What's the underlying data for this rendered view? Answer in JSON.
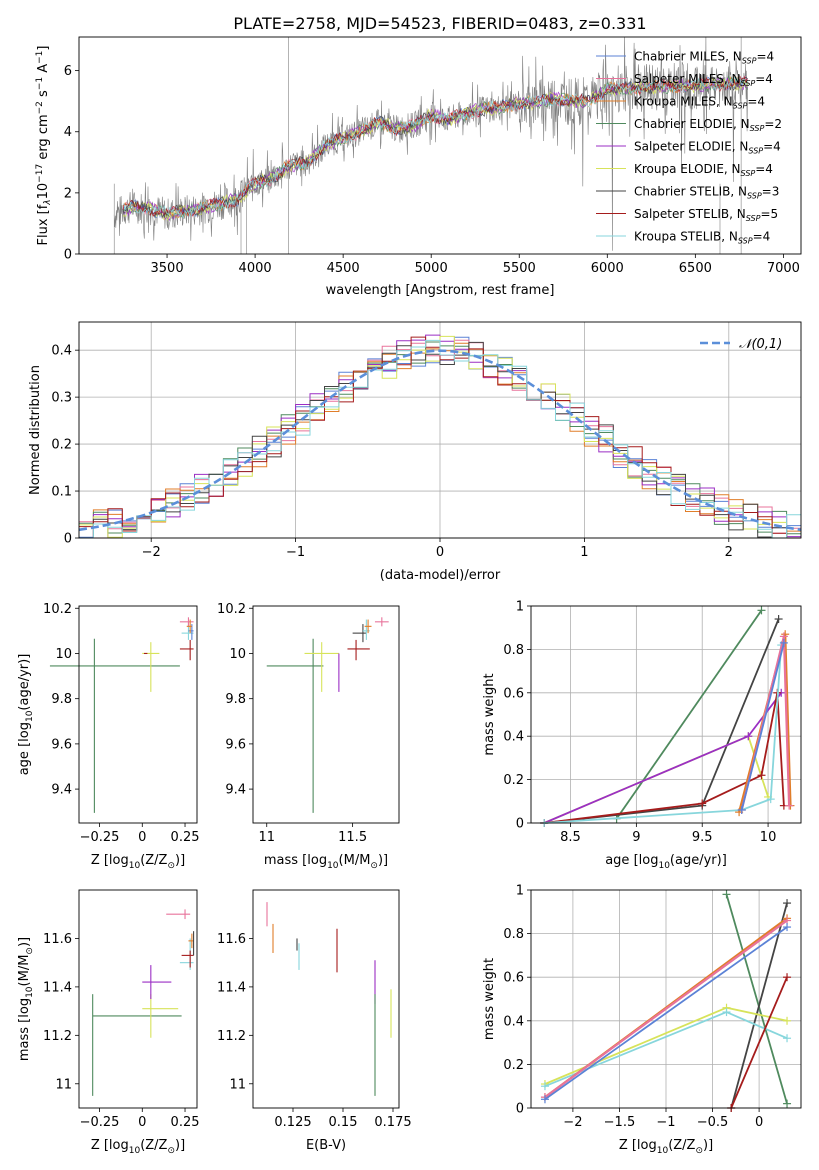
{
  "title": "PLATE=2758, MJD=54523, FIBERID=0483, z=0.331",
  "series_colors": {
    "chabrier_miles": "#5b82d6",
    "salpeter_miles": "#e8739b",
    "kroupa_miles": "#e07e2a",
    "chabrier_elodie": "#4f8a5e",
    "salpeter_elodie": "#9b2fc4",
    "kroupa_elodie": "#d7e35a",
    "chabrier_stelib": "#444444",
    "salpeter_stelib": "#a51c1c",
    "kroupa_stelib": "#87d6dc"
  },
  "chart_data": [
    {
      "id": "spectrum",
      "type": "line",
      "title": "PLATE=2758, MJD=54523, FIBERID=0483, z=0.331",
      "xlabel": "wavelength [Angstrom, rest frame]",
      "ylabel_parts": [
        "Flux [f",
        "λ",
        "10",
        "−17",
        " erg cm",
        "−2",
        " s",
        "−1",
        " A",
        "−1",
        "]"
      ],
      "xlim": [
        3000,
        7100
      ],
      "ylim": [
        0,
        7.1
      ],
      "xticks": [
        3500,
        4000,
        4500,
        5000,
        5500,
        6000,
        6500,
        7000
      ],
      "yticks": [
        0,
        2,
        4,
        6
      ],
      "data_color": "#808080",
      "legend_position": "top-right",
      "legend": [
        {
          "key": "chabrier_miles",
          "label": "Chabrier MILES, N",
          "sub": "SSP",
          "val": "=4"
        },
        {
          "key": "salpeter_miles",
          "label": "Salpeter MILES, N",
          "sub": "SSP",
          "val": "=4"
        },
        {
          "key": "kroupa_miles",
          "label": "Kroupa MILES, N",
          "sub": "SSP",
          "val": "=4"
        },
        {
          "key": "chabrier_elodie",
          "label": "Chabrier ELODIE, N",
          "sub": "SSP",
          "val": "=2"
        },
        {
          "key": "salpeter_elodie",
          "label": "Salpeter ELODIE, N",
          "sub": "SSP",
          "val": "=4"
        },
        {
          "key": "kroupa_elodie",
          "label": "Kroupa ELODIE, N",
          "sub": "SSP",
          "val": "=4"
        },
        {
          "key": "chabrier_stelib",
          "label": "Chabrier STELIB, N",
          "sub": "SSP",
          "val": "=3"
        },
        {
          "key": "salpeter_stelib",
          "label": "Salpeter STELIB, N",
          "sub": "SSP",
          "val": "=5"
        },
        {
          "key": "kroupa_stelib",
          "label": "Kroupa STELIB, N",
          "sub": "SSP",
          "val": "=4"
        }
      ],
      "continuum_x": [
        3200,
        3300,
        3400,
        3500,
        3600,
        3700,
        3800,
        3900,
        4000,
        4100,
        4200,
        4300,
        4400,
        4500,
        4600,
        4700,
        4800,
        4900,
        5000,
        5100,
        5200,
        5300,
        5400,
        5500,
        5600,
        5700,
        5800,
        5900,
        6000,
        6200,
        6400,
        6600,
        6800
      ],
      "continuum_y": [
        1.3,
        1.55,
        1.5,
        1.3,
        1.4,
        1.5,
        1.65,
        1.8,
        2.3,
        2.5,
        2.9,
        3.0,
        3.55,
        3.8,
        4.0,
        4.3,
        4.1,
        4.2,
        4.55,
        4.4,
        4.6,
        4.75,
        4.8,
        4.95,
        4.95,
        5.1,
        5.0,
        5.0,
        5.4,
        5.45,
        5.5,
        5.55,
        5.6
      ]
    },
    {
      "id": "residuals",
      "type": "histogram",
      "xlabel": "(data-model)/error",
      "ylabel": "Normed distribution",
      "xlim": [
        -2.5,
        2.5
      ],
      "ylim": [
        0,
        0.46
      ],
      "xticks": [
        -2,
        -1,
        0,
        1,
        2
      ],
      "yticks": [
        0.0,
        0.1,
        0.2,
        0.3,
        0.4
      ],
      "grid": true,
      "gaussian": {
        "label": "𝒩(0,1)",
        "mean": 0,
        "sigma": 1,
        "color": "#5b8fd9",
        "style": "dashed"
      },
      "bin_width": 0.1,
      "legend_position": "top-right"
    },
    {
      "id": "age_vs_Z",
      "type": "errorbar",
      "xlabel_parts": [
        "Z [log",
        "10",
        "(Z/Z",
        "⊙",
        ")]"
      ],
      "ylabel_parts": [
        "age  [log",
        "10",
        "(age/yr)]"
      ],
      "xlim": [
        -0.37,
        0.32
      ],
      "ylim": [
        9.25,
        10.21
      ],
      "xticks": [
        -0.25,
        0.0,
        0.25
      ],
      "yticks": [
        9.4,
        9.6,
        9.8,
        10.0,
        10.2
      ],
      "points": [
        {
          "key": "chabrier_elodie",
          "x": -0.28,
          "xerr": [
            0.26,
            0.0
          ],
          "y": 9.945,
          "yerr": [
            0.65,
            0.12
          ]
        },
        {
          "key": "chabrier_elodie",
          "x": -0.28,
          "xerr": [
            0.0,
            0.5
          ],
          "y": 9.945,
          "yerr": [
            0,
            0
          ]
        },
        {
          "key": "kroupa_elodie",
          "x": 0.05,
          "xerr": [
            0.05,
            0.05
          ],
          "y": 10.0,
          "yerr": [
            0.17,
            0.05
          ]
        },
        {
          "key": "salpeter_stelib",
          "x": 0.03,
          "xerr": [
            0.02,
            0.0
          ],
          "y": 10.0,
          "yerr": [
            0,
            0
          ]
        },
        {
          "key": "salpeter_stelib",
          "x": 0.28,
          "xerr": [
            0.06,
            0.02
          ],
          "y": 10.02,
          "yerr": [
            0.05,
            0.04
          ]
        },
        {
          "key": "kroupa_stelib",
          "x": 0.27,
          "xerr": [
            0.04,
            0.03
          ],
          "y": 10.09,
          "yerr": [
            0.03,
            0.05
          ]
        },
        {
          "key": "salpeter_miles",
          "x": 0.27,
          "xerr": [
            0.05,
            0.03
          ],
          "y": 10.14,
          "yerr": [
            0.02,
            0.02
          ]
        },
        {
          "key": "chabrier_miles",
          "x": 0.29,
          "xerr": [
            0.02,
            0.01
          ],
          "y": 10.1,
          "yerr": [
            0.04,
            0.03
          ]
        },
        {
          "key": "kroupa_miles",
          "x": 0.28,
          "xerr": [
            0.02,
            0.01
          ],
          "y": 10.12,
          "yerr": [
            0.03,
            0.03
          ]
        }
      ]
    },
    {
      "id": "age_vs_mass",
      "type": "errorbar",
      "xlabel_parts": [
        "mass [log",
        "10",
        "(M/M",
        "⊙",
        ")]"
      ],
      "xlim": [
        10.92,
        11.77
      ],
      "ylim": [
        9.25,
        10.21
      ],
      "xticks": [
        11.0,
        11.5
      ],
      "yticks": [
        9.4,
        9.6,
        9.8,
        10.0,
        10.2
      ],
      "points": [
        {
          "key": "chabrier_elodie",
          "x": 11.27,
          "xerr": [
            0.27,
            0.06
          ],
          "y": 9.945,
          "yerr": [
            0.65,
            0.12
          ]
        },
        {
          "key": "kroupa_elodie",
          "x": 11.32,
          "xerr": [
            0.1,
            0.1
          ],
          "y": 10.0,
          "yerr": [
            0.17,
            0.05
          ]
        },
        {
          "key": "salpeter_elodie",
          "x": 11.42,
          "xerr": [
            0.0,
            0.0
          ],
          "y": 9.95,
          "yerr": [
            0.12,
            0.05
          ]
        },
        {
          "key": "salpeter_stelib",
          "x": 11.52,
          "xerr": [
            0.05,
            0.08
          ],
          "y": 10.02,
          "yerr": [
            0.05,
            0.04
          ]
        },
        {
          "key": "chabrier_stelib",
          "x": 11.56,
          "xerr": [
            0.06,
            0.02
          ],
          "y": 10.09,
          "yerr": [
            0.04,
            0.04
          ]
        },
        {
          "key": "kroupa_stelib",
          "x": 11.58,
          "xerr": [
            0.02,
            0.02
          ],
          "y": 10.1,
          "yerr": [
            0.04,
            0.05
          ]
        },
        {
          "key": "salpeter_miles",
          "x": 11.67,
          "xerr": [
            0.04,
            0.04
          ],
          "y": 10.14,
          "yerr": [
            0.02,
            0.02
          ]
        },
        {
          "key": "kroupa_miles",
          "x": 11.59,
          "xerr": [
            0.02,
            0.02
          ],
          "y": 10.12,
          "yerr": [
            0.03,
            0.03
          ]
        }
      ]
    },
    {
      "id": "massweight_vs_age",
      "type": "line",
      "xlabel_parts": [
        "age  [log",
        "10",
        "(age/yr)]"
      ],
      "ylabel": "mass weight",
      "xlim": [
        8.2,
        10.25
      ],
      "ylim": [
        0,
        1
      ],
      "xticks": [
        8.5,
        9.0,
        9.5,
        10.0
      ],
      "yticks": [
        0.0,
        0.2,
        0.4,
        0.6,
        0.8,
        1.0
      ],
      "grid": true,
      "series": [
        {
          "key": "chabrier_elodie",
          "x": [
            8.85,
            9.95
          ],
          "y": [
            0.02,
            0.98
          ]
        },
        {
          "key": "chabrier_stelib",
          "x": [
            8.3,
            9.5,
            10.08
          ],
          "y": [
            0.0,
            0.08,
            0.94
          ]
        },
        {
          "key": "kroupa_elodie",
          "x": [
            8.3,
            9.85,
            10.0
          ],
          "y": [
            0.0,
            0.4,
            0.12
          ]
        },
        {
          "key": "salpeter_elodie",
          "x": [
            8.3,
            9.85,
            10.1
          ],
          "y": [
            0.0,
            0.4,
            0.6
          ]
        },
        {
          "key": "salpeter_stelib",
          "x": [
            8.3,
            9.5,
            9.95,
            10.07,
            10.12
          ],
          "y": [
            0.0,
            0.09,
            0.22,
            0.6,
            0.08
          ]
        },
        {
          "key": "kroupa_stelib",
          "x": [
            8.3,
            9.8,
            10.02,
            10.1
          ],
          "y": [
            0.0,
            0.06,
            0.11,
            0.82
          ]
        },
        {
          "key": "kroupa_miles",
          "x": [
            9.78,
            10.13,
            10.17
          ],
          "y": [
            0.05,
            0.87,
            0.08
          ]
        },
        {
          "key": "salpeter_miles",
          "x": [
            9.8,
            10.12,
            10.16
          ],
          "y": [
            0.06,
            0.86,
            0.08
          ]
        },
        {
          "key": "chabrier_miles",
          "x": [
            9.8,
            10.12
          ],
          "y": [
            0.06,
            0.83
          ]
        }
      ]
    },
    {
      "id": "mass_vs_Z",
      "type": "errorbar",
      "xlabel_parts": [
        "Z [log",
        "10",
        "(Z/Z",
        "⊙",
        ")]"
      ],
      "ylabel_parts": [
        "mass [log",
        "10",
        "(M/M",
        "⊙",
        ")]"
      ],
      "xlim": [
        -0.37,
        0.32
      ],
      "ylim": [
        10.9,
        11.8
      ],
      "xticks": [
        -0.25,
        0.0,
        0.25
      ],
      "yticks": [
        11.0,
        11.2,
        11.4,
        11.6
      ],
      "points": [
        {
          "key": "chabrier_elodie",
          "x": -0.29,
          "xerr": [
            0.0,
            0.52
          ],
          "y": 11.28,
          "yerr": [
            0.33,
            0.09
          ]
        },
        {
          "key": "kroupa_elodie",
          "x": 0.05,
          "xerr": [
            0.05,
            0.16
          ],
          "y": 11.31,
          "yerr": [
            0.12,
            0.06
          ]
        },
        {
          "key": "salpeter_elodie",
          "x": 0.05,
          "xerr": [
            0.05,
            0.12
          ],
          "y": 11.42,
          "yerr": [
            0.07,
            0.07
          ]
        },
        {
          "key": "salpeter_miles",
          "x": 0.25,
          "xerr": [
            0.11,
            0.03
          ],
          "y": 11.7,
          "yerr": [
            0.02,
            0.02
          ]
        },
        {
          "key": "kroupa_stelib",
          "x": 0.28,
          "xerr": [
            0.06,
            0.02
          ],
          "y": 11.5,
          "yerr": [
            0.03,
            0.1
          ]
        },
        {
          "key": "salpeter_stelib",
          "x": 0.28,
          "xerr": [
            0.05,
            0.02
          ],
          "y": 11.53,
          "yerr": [
            0.05,
            0.02
          ]
        },
        {
          "key": "kroupa_miles",
          "x": 0.29,
          "xerr": [
            0.02,
            0.01
          ],
          "y": 11.59,
          "yerr": [
            0.03,
            0.03
          ]
        },
        {
          "key": "chabrier_stelib",
          "x": 0.3,
          "xerr": [
            0.0,
            0.0
          ],
          "y": 11.58,
          "yerr": [
            0.05,
            0.05
          ]
        }
      ]
    },
    {
      "id": "mass_vs_ebv",
      "type": "errorbar",
      "xlabel": "E(B-V)",
      "xlim": [
        0.105,
        0.178
      ],
      "ylim": [
        10.9,
        11.8
      ],
      "xticks": [
        0.125,
        0.15,
        0.175
      ],
      "yticks": [
        11.0,
        11.2,
        11.4,
        11.6
      ],
      "points": [
        {
          "key": "salpeter_miles",
          "x": 0.112,
          "xerr": [
            0,
            0
          ],
          "y": 11.7,
          "yerr": [
            0.05,
            0.05
          ]
        },
        {
          "key": "kroupa_miles",
          "x": 0.115,
          "xerr": [
            0,
            0
          ],
          "y": 11.6,
          "yerr": [
            0.06,
            0.06
          ]
        },
        {
          "key": "chabrier_stelib",
          "x": 0.127,
          "xerr": [
            0,
            0
          ],
          "y": 11.58,
          "yerr": [
            0.03,
            0.02
          ]
        },
        {
          "key": "kroupa_stelib",
          "x": 0.128,
          "xerr": [
            0,
            0
          ],
          "y": 11.5,
          "yerr": [
            0.03,
            0.08
          ]
        },
        {
          "key": "salpeter_stelib",
          "x": 0.147,
          "xerr": [
            0,
            0
          ],
          "y": 11.55,
          "yerr": [
            0.09,
            0.09
          ]
        },
        {
          "key": "salpeter_elodie",
          "x": 0.166,
          "xerr": [
            0,
            0
          ],
          "y": 11.42,
          "yerr": [
            0.09,
            0.09
          ]
        },
        {
          "key": "chabrier_elodie",
          "x": 0.166,
          "xerr": [
            0,
            0
          ],
          "y": 11.28,
          "yerr": [
            0.33,
            0.09
          ]
        },
        {
          "key": "kroupa_elodie",
          "x": 0.174,
          "xerr": [
            0,
            0
          ],
          "y": 11.31,
          "yerr": [
            0.12,
            0.08
          ]
        }
      ]
    },
    {
      "id": "massweight_vs_Z",
      "type": "line",
      "xlabel_parts": [
        "Z [log",
        "10",
        "(Z/Z",
        "⊙",
        ")]"
      ],
      "ylabel": "mass weight",
      "xlim": [
        -2.45,
        0.45
      ],
      "ylim": [
        0,
        1
      ],
      "xticks": [
        -2.0,
        -1.5,
        -1.0,
        -0.5,
        0.0
      ],
      "yticks": [
        0.0,
        0.2,
        0.4,
        0.6,
        0.8,
        1.0
      ],
      "grid": true,
      "series": [
        {
          "key": "chabrier_elodie",
          "x": [
            -0.35,
            0.3
          ],
          "y": [
            0.98,
            0.02
          ]
        },
        {
          "key": "chabrier_stelib",
          "x": [
            -0.3,
            0.3
          ],
          "y": [
            0.0,
            0.94
          ]
        },
        {
          "key": "kroupa_elodie",
          "x": [
            -2.3,
            -0.35,
            0.3
          ],
          "y": [
            0.11,
            0.46,
            0.4
          ]
        },
        {
          "key": "kroupa_stelib",
          "x": [
            -2.3,
            -0.35,
            0.3
          ],
          "y": [
            0.1,
            0.44,
            0.32
          ]
        },
        {
          "key": "salpeter_stelib",
          "x": [
            -0.3,
            0.3
          ],
          "y": [
            0.0,
            0.6
          ]
        },
        {
          "key": "kroupa_miles",
          "x": [
            -2.3,
            0.3
          ],
          "y": [
            0.05,
            0.87
          ]
        },
        {
          "key": "salpeter_miles",
          "x": [
            -2.3,
            0.3
          ],
          "y": [
            0.05,
            0.86
          ]
        },
        {
          "key": "chabrier_miles",
          "x": [
            -2.3,
            0.3
          ],
          "y": [
            0.04,
            0.83
          ]
        }
      ]
    }
  ]
}
